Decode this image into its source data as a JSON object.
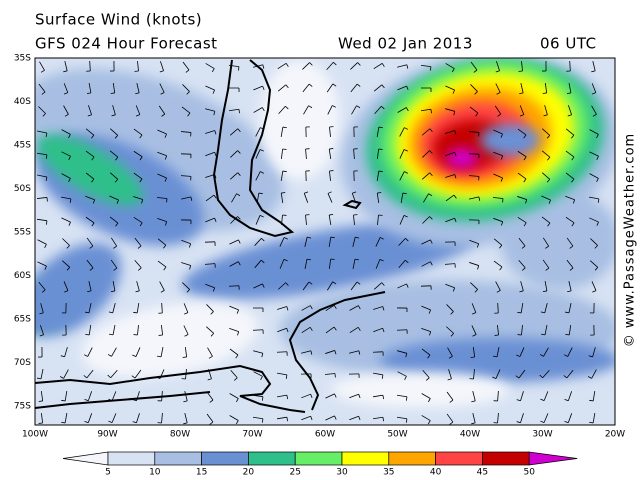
{
  "header": {
    "title": "Surface Wind (knots)",
    "subtitle": "GFS 024 Hour Forecast",
    "date": "Wed 02 Jan 2013",
    "time": "06 UTC"
  },
  "map": {
    "lat_labels": [
      "35S",
      "40S",
      "45S",
      "50S",
      "55S",
      "60S",
      "65S",
      "70S",
      "75S"
    ],
    "lon_labels": [
      "100W",
      "90W",
      "80W",
      "70W",
      "60W",
      "50W",
      "40W",
      "30W",
      "20W"
    ]
  },
  "legend": {
    "labels": [
      "5",
      "10",
      "15",
      "20",
      "25",
      "30",
      "35",
      "40",
      "45",
      "50"
    ],
    "colors": [
      "#f4f6fb",
      "#d7e2f3",
      "#a8bfe3",
      "#6a90d4",
      "#2fbf8a",
      "#66ee66",
      "#ffff00",
      "#ffa500",
      "#ff4444",
      "#c40000",
      "#d000d0"
    ]
  },
  "credit": "© www.PassageWeather.com"
}
